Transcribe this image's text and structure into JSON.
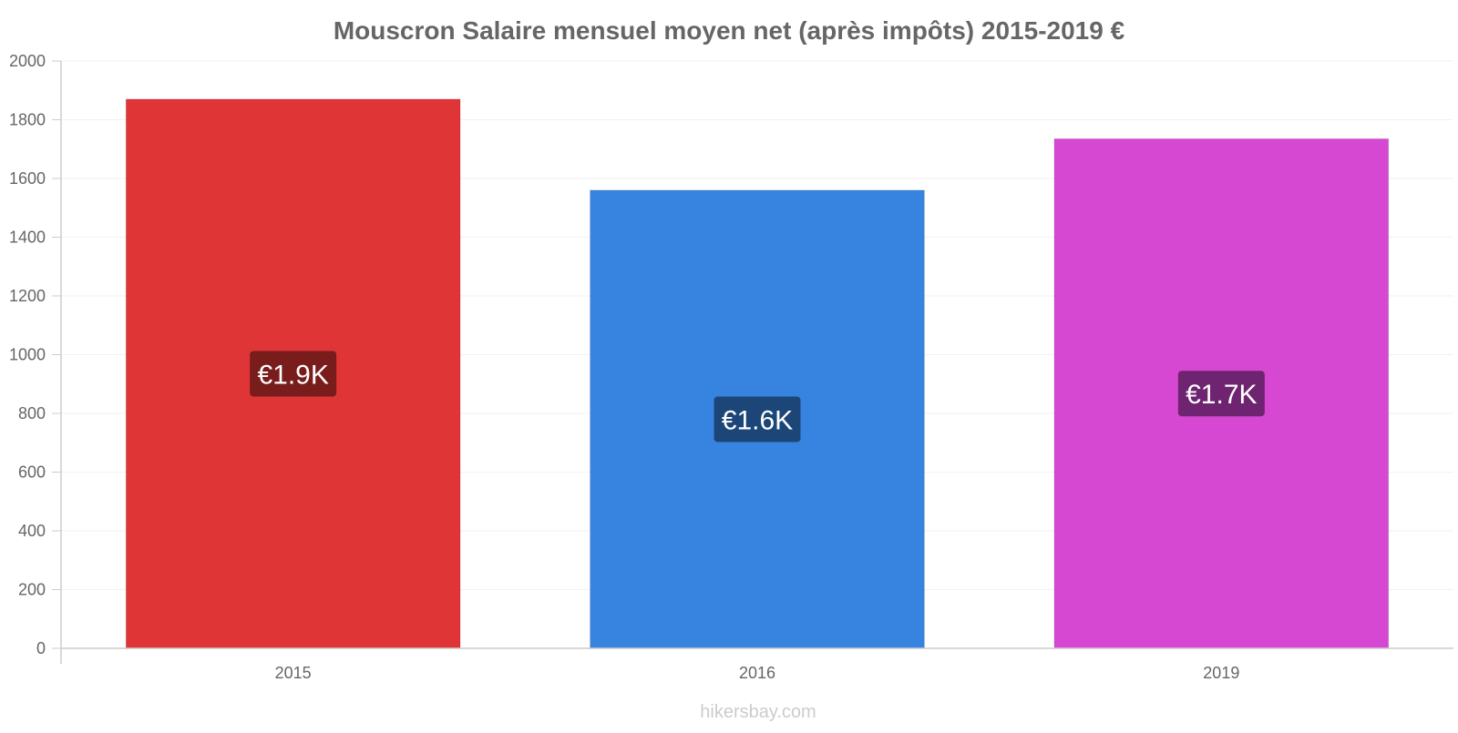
{
  "chart_data": {
    "type": "bar",
    "title": "Mouscron Salaire mensuel moyen net (après impôts) 2015-2019 €",
    "xlabel": "",
    "ylabel": "",
    "categories": [
      "2015",
      "2016",
      "2019"
    ],
    "values": [
      1870,
      1560,
      1735
    ],
    "data_labels": [
      "€1.9K",
      "€1.6K",
      "€1.7K"
    ],
    "colors": [
      "#e03536",
      "#3784e0",
      "#d748d2"
    ],
    "label_bg_colors": [
      "#781c1c",
      "#1c4677",
      "#6e2470"
    ],
    "ylim": [
      0,
      2000
    ],
    "y_ticks": [
      0,
      200,
      400,
      600,
      800,
      1000,
      1200,
      1400,
      1600,
      1800,
      2000
    ],
    "grid": true,
    "legend": "none"
  },
  "watermark": "hikersbay.com"
}
